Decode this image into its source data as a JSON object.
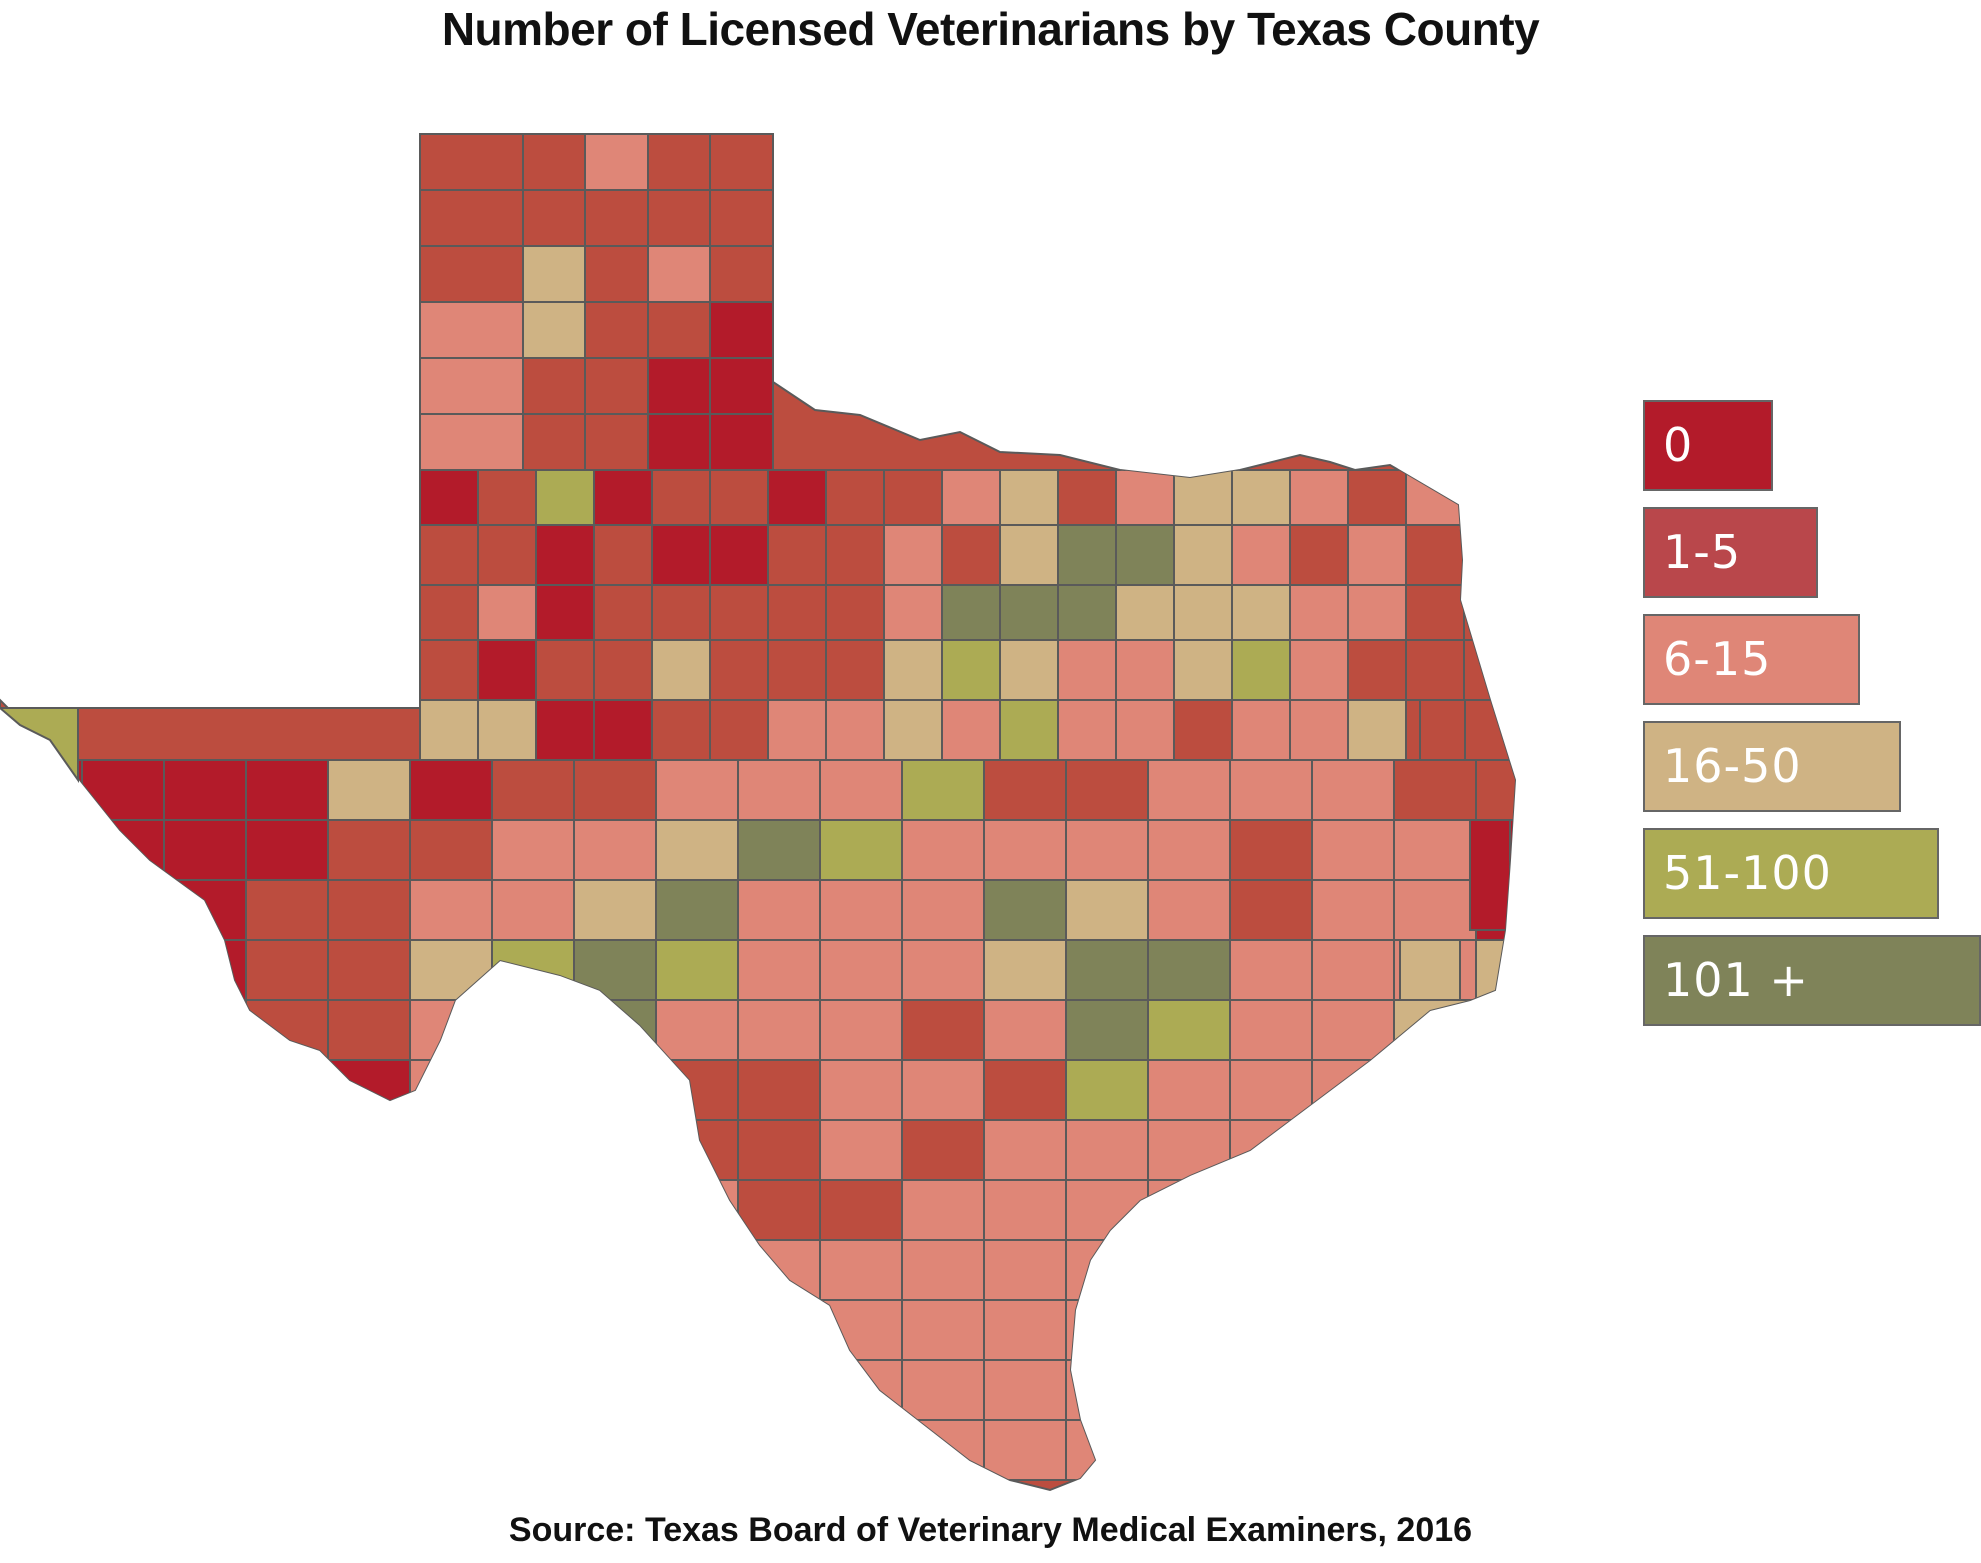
{
  "title": "Number of Licensed Veterinarians by Texas County",
  "source": "Source:  Texas Board of Veterinary Medical Examiners, 2016",
  "legend": [
    {
      "label": "0",
      "color": "#b31b2a"
    },
    {
      "label": "1-5",
      "color": "#b9474b"
    },
    {
      "label": "6-15",
      "color": "#df8677"
    },
    {
      "label": "16-50",
      "color": "#cfb384"
    },
    {
      "label": "51-100",
      "color": "#acab54"
    },
    {
      "label": "101 +",
      "color": "#7f8359"
    }
  ],
  "colors": {
    "c0": "#b31b2a",
    "c1": "#bc4d3f",
    "c2": "#df8677",
    "c3": "#cfb384",
    "c4": "#acab54",
    "c5": "#7f8359",
    "border": "#5a5a5a"
  }
}
